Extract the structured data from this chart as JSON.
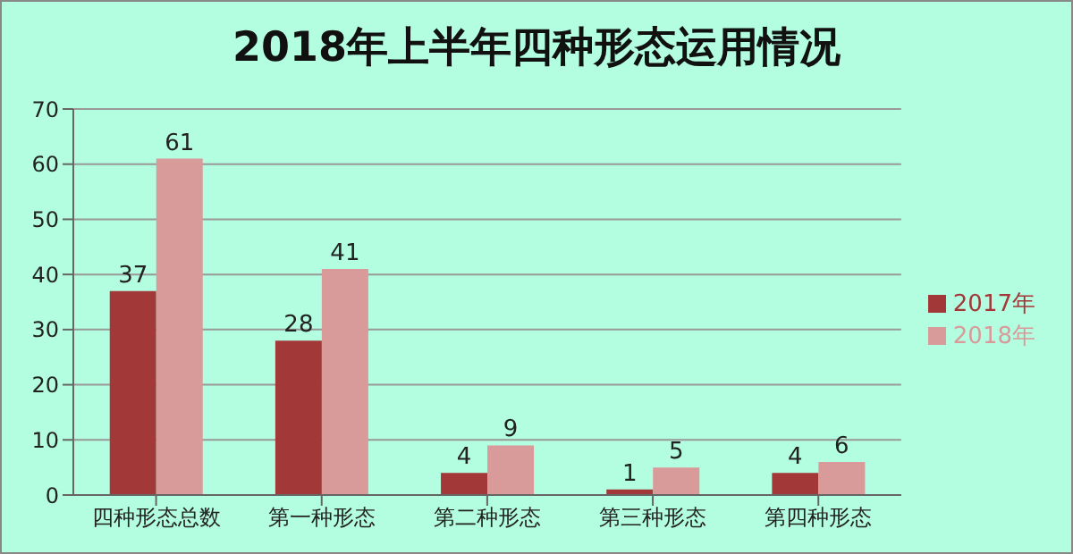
{
  "chart_data": {
    "type": "bar",
    "title": "2018年上半年四种形态运用情况",
    "categories": [
      "四种形态总数",
      "第一种形态",
      "第二种形态",
      "第三种形态",
      "第四种形态"
    ],
    "series": [
      {
        "name": "2017年",
        "color": "#a33838",
        "values": [
          37,
          28,
          4,
          1,
          4
        ]
      },
      {
        "name": "2018年",
        "color": "#d99a9a",
        "values": [
          61,
          41,
          9,
          5,
          6
        ]
      }
    ],
    "ylim": [
      0,
      70
    ],
    "yticks": [
      0,
      10,
      20,
      30,
      40,
      50,
      60,
      70
    ],
    "grid": "y",
    "legend": "right",
    "data_labels": true
  }
}
